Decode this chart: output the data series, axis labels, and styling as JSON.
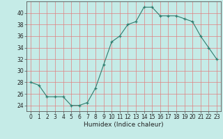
{
  "x": [
    0,
    1,
    2,
    3,
    4,
    5,
    6,
    7,
    8,
    9,
    10,
    11,
    12,
    13,
    14,
    15,
    16,
    17,
    18,
    19,
    20,
    21,
    22,
    23
  ],
  "y": [
    28,
    27.5,
    25.5,
    25.5,
    25.5,
    24,
    24,
    24.5,
    27,
    31,
    35,
    36,
    38,
    38.5,
    41,
    41,
    39.5,
    39.5,
    39.5,
    39,
    38.5,
    36,
    34,
    32
  ],
  "line_color": "#2e7d6e",
  "marker": "+",
  "bg_color": "#c5ebe7",
  "grid_color": "#e08080",
  "xlabel": "Humidex (Indice chaleur)",
  "xlim": [
    -0.5,
    23.5
  ],
  "ylim": [
    23,
    42
  ],
  "yticks": [
    24,
    26,
    28,
    30,
    32,
    34,
    36,
    38,
    40
  ],
  "xticks": [
    0,
    1,
    2,
    3,
    4,
    5,
    6,
    7,
    8,
    9,
    10,
    11,
    12,
    13,
    14,
    15,
    16,
    17,
    18,
    19,
    20,
    21,
    22,
    23
  ],
  "axis_fontsize": 5.5,
  "label_fontsize": 6.5
}
